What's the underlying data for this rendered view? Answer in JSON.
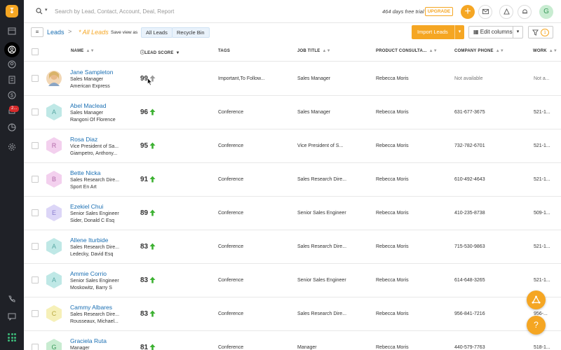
{
  "search": {
    "placeholder": "Search by Lead, Contact, Account, Deal, Report"
  },
  "trial": {
    "text": "464 days free trial",
    "upgrade_label": "UPGRADE"
  },
  "user": {
    "initial": "G"
  },
  "sidebar": {
    "logo": "↧",
    "badge": "2..."
  },
  "breadcrumb": {
    "root": "Leads",
    "separator": ">",
    "current": "* All Leads",
    "save_view": "Save view as"
  },
  "views": {
    "all_leads": "All Leads",
    "recycle_bin": "Recycle Bin"
  },
  "toolbar": {
    "import_label": "Import Leads",
    "edit_columns_label": "Edit columns",
    "filter_count": "1"
  },
  "columns": {
    "name": "NAME",
    "lead_score": "LEAD SCORE",
    "tags": "TAGS",
    "job_title": "JOB TITLE",
    "product_consultant": "PRODUCT CONSULTA...",
    "company_phone": "COMPANY PHONE",
    "work": "WORK"
  },
  "colors": {
    "accent": "#f5a623",
    "link": "#1a6fb3",
    "score_up": "#3cb131",
    "sidebar": "#1f2127"
  },
  "rows": [
    {
      "name": "Jane Sampleton",
      "title": "Sales Manager",
      "company": "American Express",
      "score": "99",
      "tags": "Important,To Follow...",
      "job": "Sales Manager",
      "consultant": "Rebecca Moris",
      "phone": "Not available",
      "work": "Not a...",
      "initial": "",
      "avatar_color": "#f2d7b6",
      "letter_color": "#b98a5a"
    },
    {
      "name": "Abel Maclead",
      "title": "Sales Manager",
      "company": "Rangoni Of Florence",
      "score": "96",
      "tags": "Conference",
      "job": "Sales Manager",
      "consultant": "Rebecca Moris",
      "phone": "631-677-3675",
      "work": "521-1...",
      "initial": "A",
      "avatar_color": "#bfe8e6",
      "letter_color": "#5aa9a5"
    },
    {
      "name": "Rosa Diaz",
      "title": "Vice President of Sa...",
      "company": "Giampetro, Anthony...",
      "score": "95",
      "tags": "Conference",
      "job": "Vice President of S...",
      "consultant": "Rebecca Moris",
      "phone": "732-782-6701",
      "work": "521-1...",
      "initial": "R",
      "avatar_color": "#f3d0ee",
      "letter_color": "#b36aa9"
    },
    {
      "name": "Bette Nicka",
      "title": "Sales Research Dire...",
      "company": "Sport En Art",
      "score": "91",
      "tags": "Conference",
      "job": "Sales Research Dire...",
      "consultant": "Rebecca Moris",
      "phone": "610-492-4643",
      "work": "521-1...",
      "initial": "B",
      "avatar_color": "#f3d0ee",
      "letter_color": "#b36aa9"
    },
    {
      "name": "Ezekiel Chui",
      "title": "Senior Sales Engineer",
      "company": "Sider, Donald C Esq",
      "score": "89",
      "tags": "Conference",
      "job": "Senior Sales Engineer",
      "consultant": "Rebecca Moris",
      "phone": "410-235-8738",
      "work": "509-1...",
      "initial": "E",
      "avatar_color": "#dcd6f7",
      "letter_color": "#8b7fcf"
    },
    {
      "name": "Allene Iturbide",
      "title": "Sales Research Dire...",
      "company": "Ledecky, David Esq",
      "score": "83",
      "tags": "Conference",
      "job": "Sales Research Dire...",
      "consultant": "Rebecca Moris",
      "phone": "715-530-9863",
      "work": "521-1...",
      "initial": "A",
      "avatar_color": "#bfe8e6",
      "letter_color": "#5aa9a5"
    },
    {
      "name": "Ammie Corrio",
      "title": "Senior Sales Engineer",
      "company": "Moskowitz, Barry S",
      "score": "83",
      "tags": "Conference",
      "job": "Senior Sales Engineer",
      "consultant": "Rebecca Moris",
      "phone": "614-648-3265",
      "work": "521-1...",
      "initial": "A",
      "avatar_color": "#bfe8e6",
      "letter_color": "#5aa9a5"
    },
    {
      "name": "Cammy Albares",
      "title": "Sales Research Dire...",
      "company": "Rousseaux, Michael...",
      "score": "83",
      "tags": "Conference",
      "job": "Sales Research Dire...",
      "consultant": "Rebecca Moris",
      "phone": "956-841-7216",
      "work": "956-...",
      "initial": "C",
      "avatar_color": "#f6f0b8",
      "letter_color": "#b8a83f"
    },
    {
      "name": "Graciela Ruta",
      "title": "Manager",
      "company": "",
      "score": "81",
      "tags": "Conference",
      "job": "Manager",
      "consultant": "Rebecca Moris",
      "phone": "440-579-7763",
      "work": "518-1...",
      "initial": "G",
      "avatar_color": "#c8ecd1",
      "letter_color": "#3a9a5b"
    }
  ],
  "fabs": {
    "top_icon": "triangle-nodes",
    "help_label": "?"
  }
}
